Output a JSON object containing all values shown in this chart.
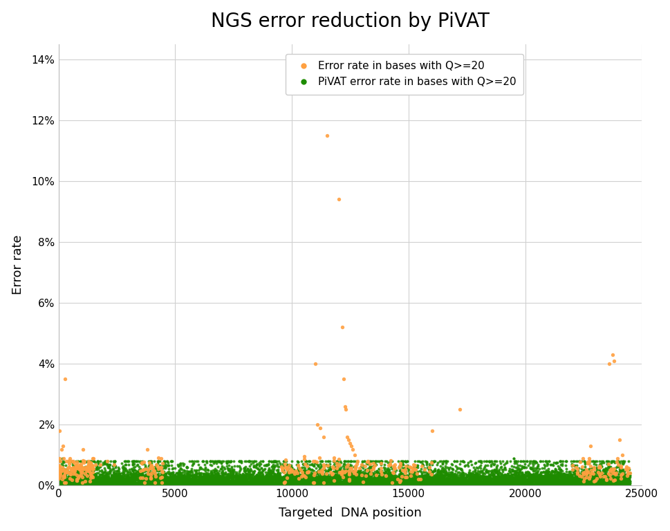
{
  "title": "NGS error reduction by PiVAT",
  "xlabel": "Targeted  DNA position",
  "ylabel": "Error rate",
  "xlim": [
    0,
    25000
  ],
  "ylim": [
    0,
    0.145
  ],
  "yticks": [
    0,
    0.02,
    0.04,
    0.06,
    0.08,
    0.1,
    0.12,
    0.14
  ],
  "xticks": [
    0,
    5000,
    10000,
    15000,
    20000,
    25000
  ],
  "orange_label": "Error rate in bases with Q>=20",
  "green_label": "PiVAT error rate in bases with Q>=20",
  "orange_color": "#FFA040",
  "green_color": "#1E8C00",
  "background_color": "#FFFFFF",
  "title_fontsize": 20,
  "axis_fontsize": 13,
  "legend_fontsize": 11,
  "orange_points": [
    [
      30,
      0.018
    ],
    [
      50,
      0.009
    ],
    [
      70,
      0.008
    ],
    [
      120,
      0.012
    ],
    [
      180,
      0.013
    ],
    [
      220,
      0.009
    ],
    [
      280,
      0.035
    ],
    [
      340,
      0.008
    ],
    [
      480,
      0.009
    ],
    [
      580,
      0.008
    ],
    [
      650,
      0.008
    ],
    [
      850,
      0.007
    ],
    [
      1050,
      0.012
    ],
    [
      1120,
      0.008
    ],
    [
      1280,
      0.008
    ],
    [
      1580,
      0.007
    ],
    [
      1780,
      0.007
    ],
    [
      2100,
      0.008
    ],
    [
      2380,
      0.007
    ],
    [
      3800,
      0.012
    ],
    [
      4200,
      0.007
    ],
    [
      11000,
      0.04
    ],
    [
      11100,
      0.02
    ],
    [
      11200,
      0.019
    ],
    [
      11350,
      0.016
    ],
    [
      11500,
      0.115
    ],
    [
      12000,
      0.094
    ],
    [
      12150,
      0.052
    ],
    [
      12220,
      0.035
    ],
    [
      12270,
      0.026
    ],
    [
      12310,
      0.025
    ],
    [
      12380,
      0.016
    ],
    [
      12430,
      0.015
    ],
    [
      12480,
      0.014
    ],
    [
      12550,
      0.013
    ],
    [
      12620,
      0.012
    ],
    [
      12700,
      0.01
    ],
    [
      12800,
      0.008
    ],
    [
      13000,
      0.007
    ],
    [
      13500,
      0.006
    ],
    [
      14200,
      0.007
    ],
    [
      15100,
      0.006
    ],
    [
      15900,
      0.006
    ],
    [
      16000,
      0.018
    ],
    [
      17200,
      0.025
    ],
    [
      22800,
      0.013
    ],
    [
      23600,
      0.04
    ],
    [
      23750,
      0.043
    ],
    [
      23820,
      0.041
    ],
    [
      23950,
      0.009
    ],
    [
      24050,
      0.015
    ],
    [
      24150,
      0.01
    ]
  ]
}
